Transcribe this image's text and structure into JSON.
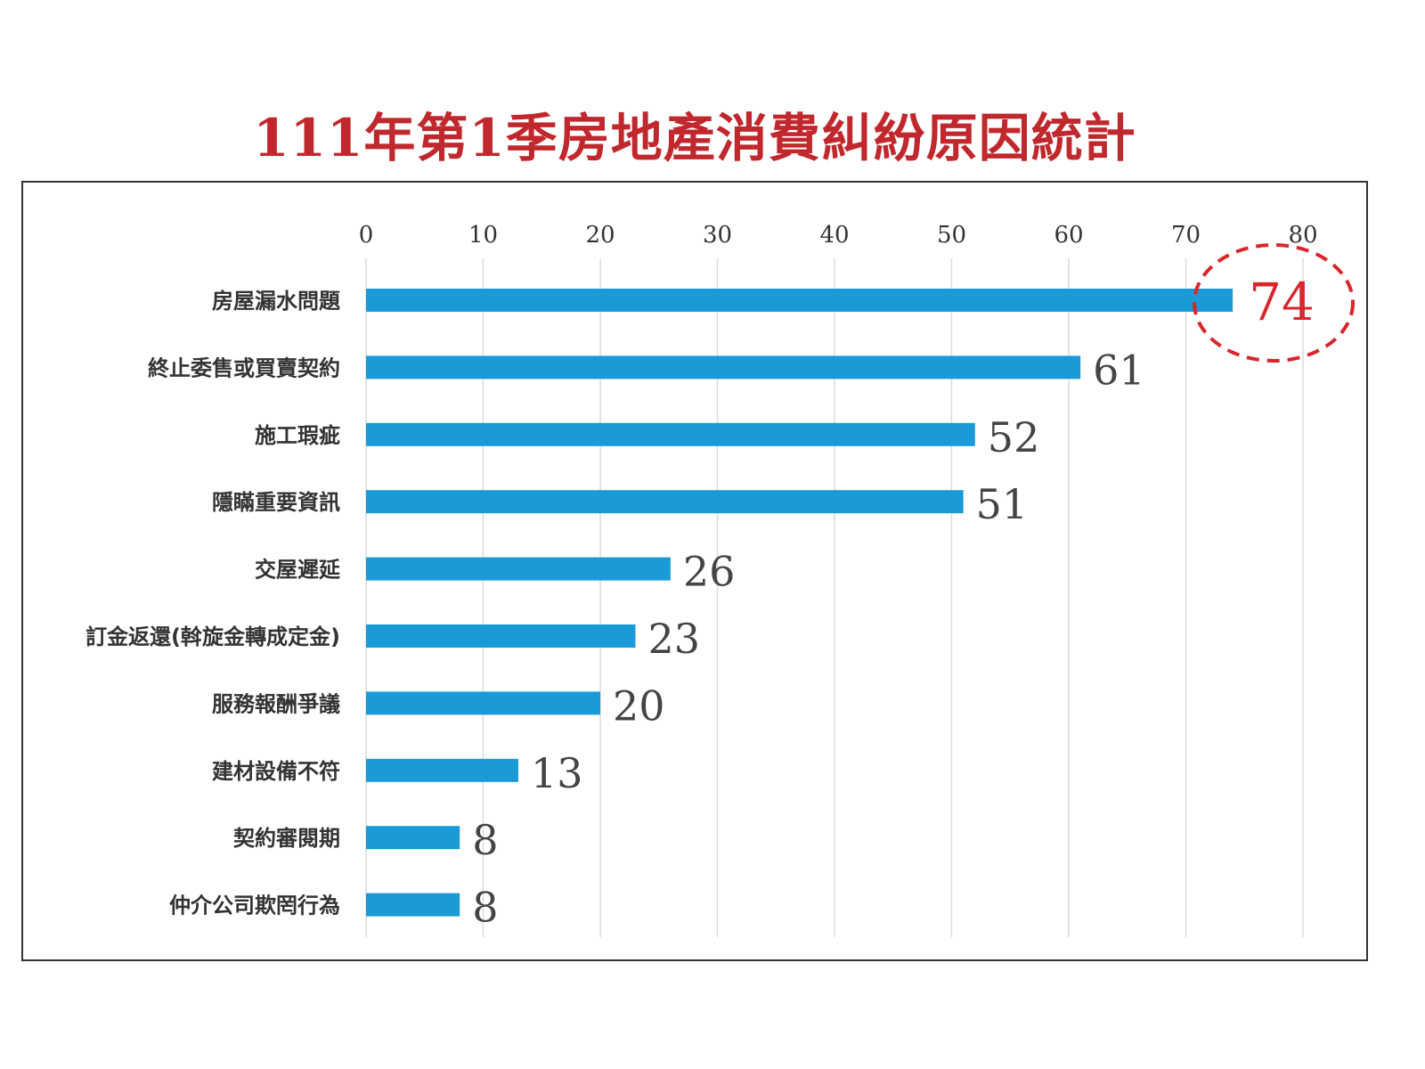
{
  "chart_data": {
    "type": "bar",
    "orientation": "horizontal",
    "title": "111年第1季房地產消費糾紛原因統計",
    "categories": [
      "房屋漏水問題",
      "終止委售或買賣契約",
      "施工瑕疵",
      "隱瞞重要資訊",
      "交屋遲延",
      "訂金返還(斡旋金轉成定金)",
      "服務報酬爭議",
      "建材設備不符",
      "契約審閱期",
      "仲介公司欺罔行為"
    ],
    "values": [
      74,
      61,
      52,
      51,
      26,
      23,
      20,
      13,
      8,
      8
    ],
    "xlim": [
      0,
      80
    ],
    "xticks": [
      "0",
      "10",
      "20",
      "30",
      "40",
      "50",
      "60",
      "70",
      "80"
    ],
    "grid": true,
    "highlight": {
      "index": 0,
      "style": "dashed-circle"
    },
    "colors": {
      "bar": "#1a9bd7",
      "title": "#c0282d",
      "highlight": "#d8262c",
      "value_label": "#444444"
    }
  }
}
